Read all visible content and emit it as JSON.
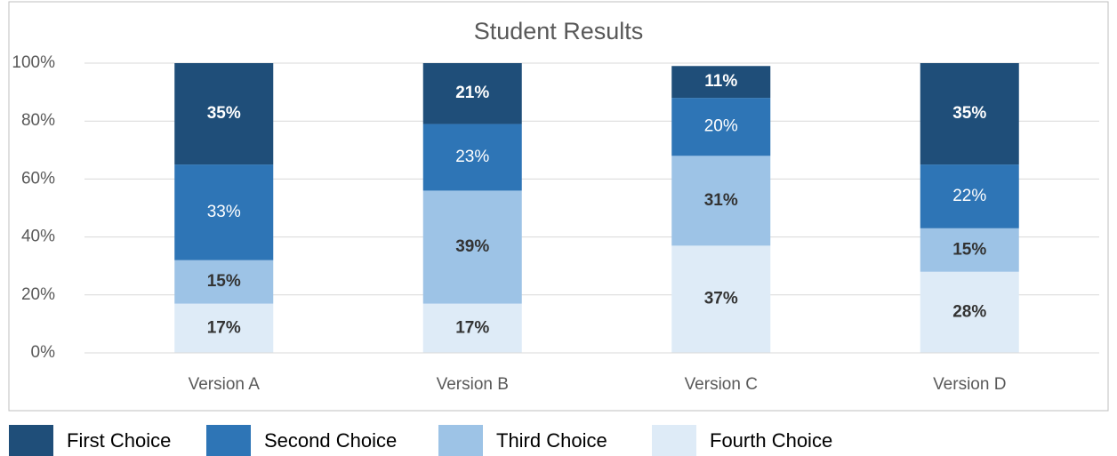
{
  "chart_data": {
    "type": "stacked_bar",
    "title": "Student Results",
    "categories": [
      "Version A",
      "Version B",
      "Version C",
      "Version D"
    ],
    "series": [
      {
        "name": "Fourth Choice",
        "color": "#deebf7",
        "label_color": "#333333",
        "label_bold": true,
        "values": [
          17,
          17,
          37,
          28
        ],
        "value_labels": [
          "17%",
          "17%",
          "37%",
          "28%"
        ]
      },
      {
        "name": "Third Choice",
        "color": "#9dc3e6",
        "label_color": "#333333",
        "label_bold": true,
        "values": [
          15,
          39,
          31,
          15
        ],
        "value_labels": [
          "15%",
          "39%",
          "31%",
          "15%"
        ]
      },
      {
        "name": "Second Choice",
        "color": "#2e75b6",
        "label_color": "#ffffff",
        "label_bold": false,
        "values": [
          33,
          23,
          20,
          22
        ],
        "value_labels": [
          "33%",
          "23%",
          "20%",
          "22%"
        ]
      },
      {
        "name": "First Choice",
        "color": "#1f4e79",
        "label_color": "#ffffff",
        "label_bold": true,
        "values": [
          35,
          21,
          11,
          35
        ],
        "value_labels": [
          "35%",
          "21%",
          "11%",
          "35%"
        ]
      }
    ],
    "ylim": [
      0,
      100
    ],
    "yticks": [
      {
        "value": 0,
        "label": "0%"
      },
      {
        "value": 20,
        "label": "20%"
      },
      {
        "value": 40,
        "label": "40%"
      },
      {
        "value": 60,
        "label": "60%"
      },
      {
        "value": 80,
        "label": "80%"
      },
      {
        "value": 100,
        "label": "100%"
      }
    ],
    "grid": true,
    "legend": "bottom"
  }
}
